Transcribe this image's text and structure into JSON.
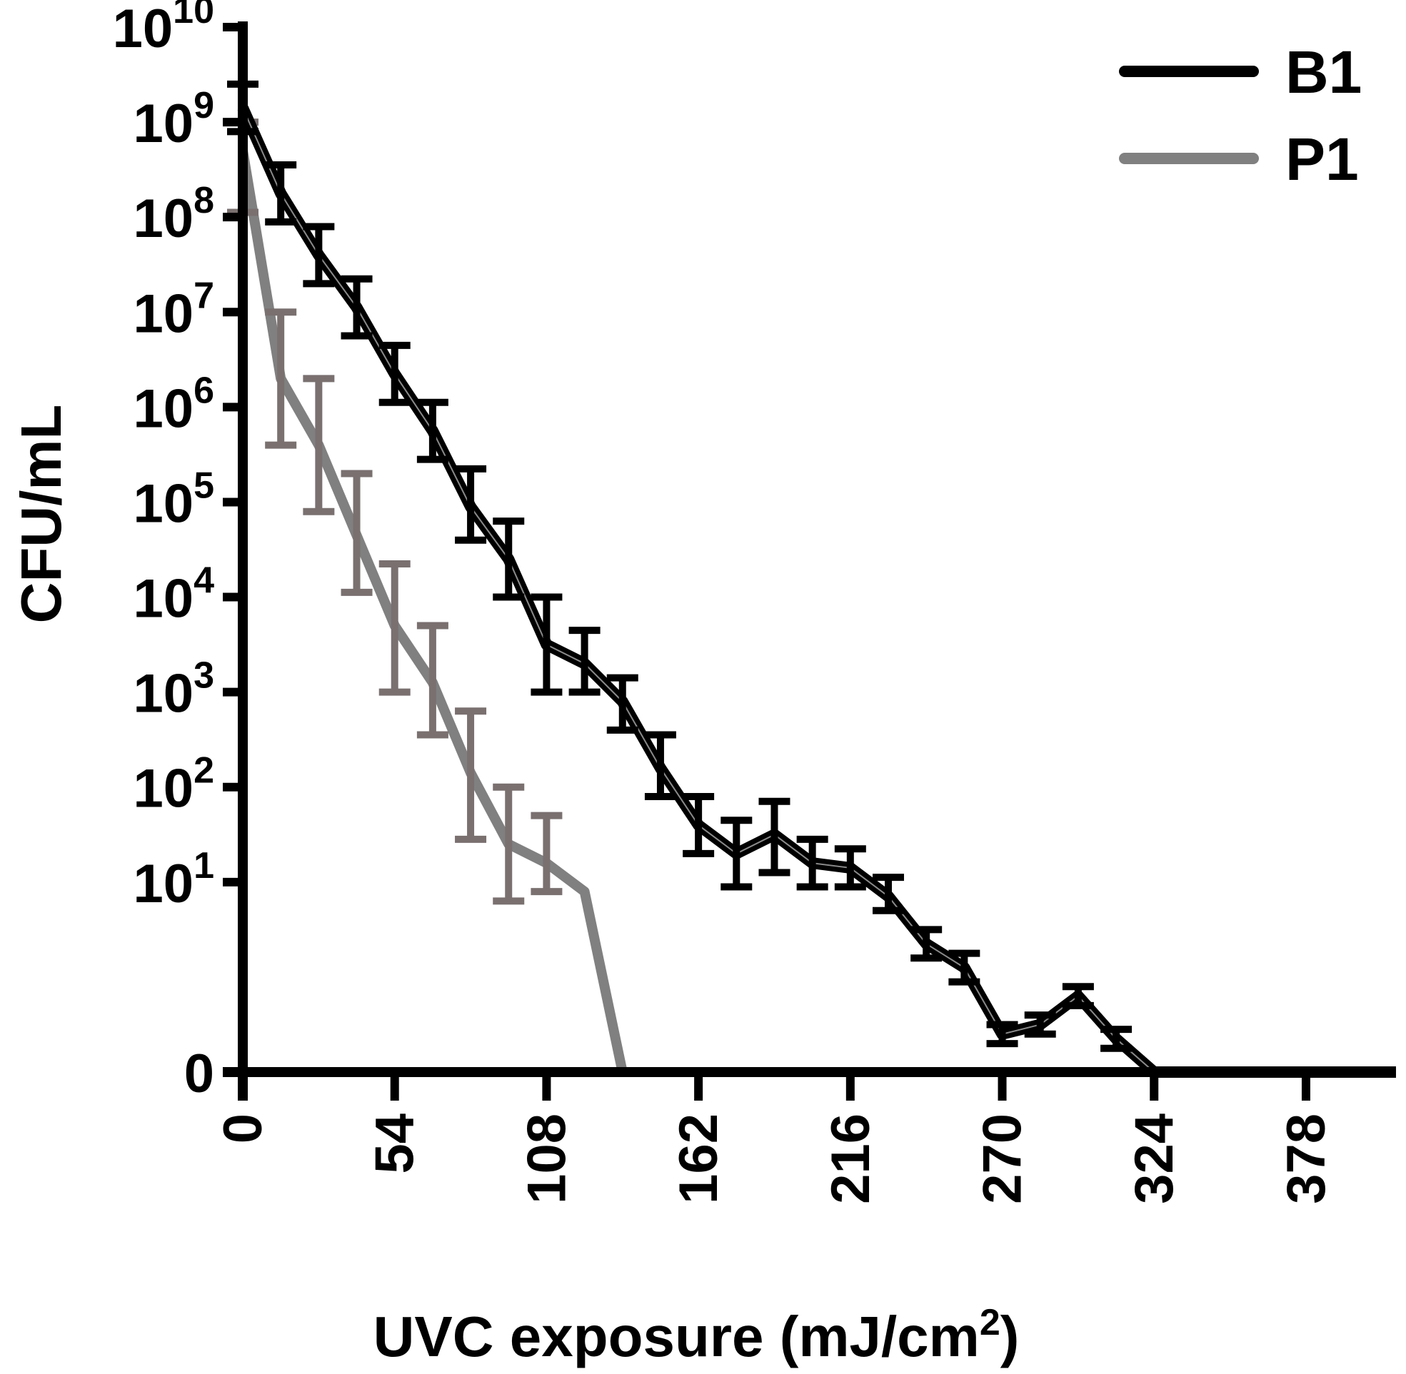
{
  "chart_data": {
    "type": "line",
    "title": "",
    "xlabel": "UVC exposure (mJ/cm",
    "xlabel_sup": "2",
    "xlabel_close": ")",
    "ylabel": "CFU/mL",
    "xlim": [
      0,
      410
    ],
    "yscale": "log",
    "ylim_log10": [
      -1,
      10
    ],
    "zero_log10": -1,
    "x_ticks": [
      {
        "value": 0,
        "label": "0"
      },
      {
        "value": 54,
        "label": "54"
      },
      {
        "value": 108,
        "label": "108"
      },
      {
        "value": 162,
        "label": "162"
      },
      {
        "value": 216,
        "label": "216"
      },
      {
        "value": 270,
        "label": "270"
      },
      {
        "value": 324,
        "label": "324"
      },
      {
        "value": 378,
        "label": "378"
      }
    ],
    "y_ticks": [
      {
        "log": -1,
        "base": "0",
        "exp": ""
      },
      {
        "log": 1,
        "base": "10",
        "exp": "1"
      },
      {
        "log": 2,
        "base": "10",
        "exp": "2"
      },
      {
        "log": 3,
        "base": "10",
        "exp": "3"
      },
      {
        "log": 4,
        "base": "10",
        "exp": "4"
      },
      {
        "log": 5,
        "base": "10",
        "exp": "5"
      },
      {
        "log": 6,
        "base": "10",
        "exp": "6"
      },
      {
        "log": 7,
        "base": "10",
        "exp": "7"
      },
      {
        "log": 8,
        "base": "10",
        "exp": "8"
      },
      {
        "log": 9,
        "base": "10",
        "exp": "9"
      },
      {
        "log": 10,
        "base": "10",
        "exp": "10"
      }
    ],
    "legend_position": "top-right",
    "series": [
      {
        "name": "B1",
        "color": "#000000",
        "points": [
          {
            "x": 0,
            "y_log10": 9.15,
            "err_lo": 8.9,
            "err_hi": 9.4
          },
          {
            "x": 13.5,
            "y_log10": 8.25,
            "err_lo": 7.95,
            "err_hi": 8.55
          },
          {
            "x": 27,
            "y_log10": 7.6,
            "err_lo": 7.3,
            "err_hi": 7.9
          },
          {
            "x": 40.5,
            "y_log10": 7.05,
            "err_lo": 6.75,
            "err_hi": 7.35
          },
          {
            "x": 54,
            "y_log10": 6.35,
            "err_lo": 6.05,
            "err_hi": 6.65
          },
          {
            "x": 67.5,
            "y_log10": 5.75,
            "err_lo": 5.45,
            "err_hi": 6.05
          },
          {
            "x": 81,
            "y_log10": 4.95,
            "err_lo": 4.6,
            "err_hi": 5.35
          },
          {
            "x": 94.5,
            "y_log10": 4.4,
            "err_lo": 4.0,
            "err_hi": 4.8
          },
          {
            "x": 108,
            "y_log10": 3.5,
            "err_lo": 3.0,
            "err_hi": 4.0
          },
          {
            "x": 121.5,
            "y_log10": 3.3,
            "err_lo": 3.0,
            "err_hi": 3.65
          },
          {
            "x": 135,
            "y_log10": 2.9,
            "err_lo": 2.6,
            "err_hi": 3.15
          },
          {
            "x": 148.5,
            "y_log10": 2.2,
            "err_lo": 1.9,
            "err_hi": 2.55
          },
          {
            "x": 162,
            "y_log10": 1.6,
            "err_lo": 1.3,
            "err_hi": 1.9
          },
          {
            "x": 175.5,
            "y_log10": 1.3,
            "err_lo": 0.95,
            "err_hi": 1.65
          },
          {
            "x": 189,
            "y_log10": 1.5,
            "err_lo": 1.1,
            "err_hi": 1.85
          },
          {
            "x": 202.5,
            "y_log10": 1.2,
            "err_lo": 0.95,
            "err_hi": 1.45
          },
          {
            "x": 216,
            "y_log10": 1.15,
            "err_lo": 0.95,
            "err_hi": 1.35
          },
          {
            "x": 229.5,
            "y_log10": 0.85,
            "err_lo": 0.7,
            "err_hi": 1.05
          },
          {
            "x": 243,
            "y_log10": 0.35,
            "err_lo": 0.2,
            "err_hi": 0.5
          },
          {
            "x": 256.5,
            "y_log10": 0.1,
            "err_lo": -0.05,
            "err_hi": 0.25
          },
          {
            "x": 270,
            "y_log10": -0.6,
            "err_lo": -0.7,
            "err_hi": -0.5
          },
          {
            "x": 283.5,
            "y_log10": -0.5,
            "err_lo": -0.6,
            "err_hi": -0.4
          },
          {
            "x": 297,
            "y_log10": -0.2,
            "err_lo": -0.3,
            "err_hi": -0.1
          },
          {
            "x": 310.5,
            "y_log10": -0.65,
            "err_lo": -0.75,
            "err_hi": -0.55
          },
          {
            "x": 324,
            "y_log10": -1
          },
          {
            "x": 410,
            "y_log10": -1
          }
        ]
      },
      {
        "name": "P1",
        "color": "#808080",
        "points": [
          {
            "x": 0,
            "y_log10": 8.7,
            "err_lo": 8.05,
            "err_hi": 9.0
          },
          {
            "x": 13.5,
            "y_log10": 6.3,
            "err_lo": 5.6,
            "err_hi": 7.0
          },
          {
            "x": 27,
            "y_log10": 5.6,
            "err_lo": 4.9,
            "err_hi": 6.3
          },
          {
            "x": 40.5,
            "y_log10": 4.65,
            "err_lo": 4.05,
            "err_hi": 5.3
          },
          {
            "x": 54,
            "y_log10": 3.7,
            "err_lo": 3.0,
            "err_hi": 4.35
          },
          {
            "x": 67.5,
            "y_log10": 3.1,
            "err_lo": 2.55,
            "err_hi": 3.7
          },
          {
            "x": 81,
            "y_log10": 2.15,
            "err_lo": 1.45,
            "err_hi": 2.8
          },
          {
            "x": 94.5,
            "y_log10": 1.4,
            "err_lo": 0.8,
            "err_hi": 2.0
          },
          {
            "x": 108,
            "y_log10": 1.2,
            "err_lo": 0.9,
            "err_hi": 1.7
          },
          {
            "x": 121.5,
            "y_log10": 0.9
          },
          {
            "x": 135,
            "y_log10": -1
          },
          {
            "x": 243,
            "y_log10": -1
          }
        ]
      }
    ]
  }
}
